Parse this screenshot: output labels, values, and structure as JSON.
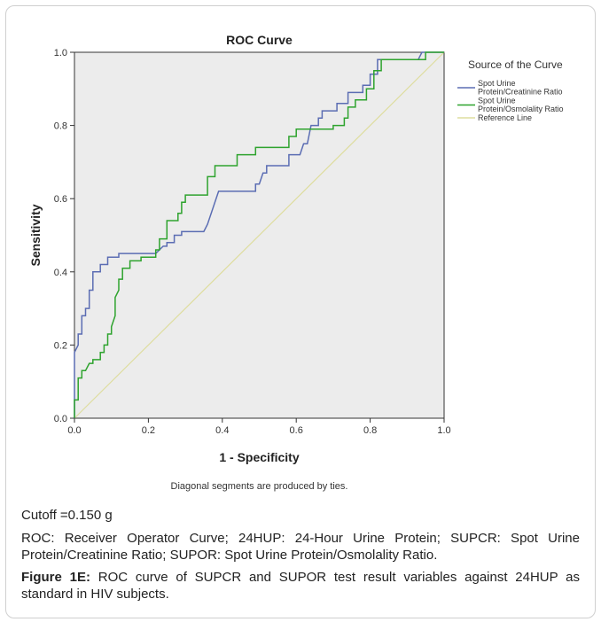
{
  "chart_data": {
    "type": "line",
    "title": "ROC Curve",
    "xlabel": "1 - Specificity",
    "ylabel": "Sensitivity",
    "xlim": [
      0.0,
      1.0
    ],
    "ylim": [
      0.0,
      1.0
    ],
    "x_ticks": [
      "0.0",
      "0.2",
      "0.4",
      "0.6",
      "0.8",
      "1.0"
    ],
    "y_ticks": [
      "0.0",
      "0.2",
      "0.4",
      "0.6",
      "0.8",
      "1.0"
    ],
    "grid": false,
    "legend": {
      "title": "Source of the Curve",
      "position": "right"
    },
    "note": "Diagonal segments are produced by ties.",
    "series": [
      {
        "name": "Spot Urine Protein/Creatinine Ratio",
        "color": "#5b6db3",
        "points": [
          [
            0.0,
            0.0
          ],
          [
            0.0,
            0.18
          ],
          [
            0.01,
            0.2
          ],
          [
            0.01,
            0.23
          ],
          [
            0.02,
            0.23
          ],
          [
            0.02,
            0.28
          ],
          [
            0.03,
            0.28
          ],
          [
            0.03,
            0.3
          ],
          [
            0.04,
            0.3
          ],
          [
            0.04,
            0.35
          ],
          [
            0.05,
            0.35
          ],
          [
            0.05,
            0.4
          ],
          [
            0.07,
            0.4
          ],
          [
            0.07,
            0.42
          ],
          [
            0.09,
            0.42
          ],
          [
            0.09,
            0.44
          ],
          [
            0.12,
            0.44
          ],
          [
            0.12,
            0.45
          ],
          [
            0.22,
            0.45
          ],
          [
            0.24,
            0.47
          ],
          [
            0.25,
            0.47
          ],
          [
            0.25,
            0.48
          ],
          [
            0.27,
            0.48
          ],
          [
            0.27,
            0.5
          ],
          [
            0.29,
            0.5
          ],
          [
            0.29,
            0.51
          ],
          [
            0.35,
            0.51
          ],
          [
            0.36,
            0.53
          ],
          [
            0.39,
            0.62
          ],
          [
            0.49,
            0.62
          ],
          [
            0.49,
            0.64
          ],
          [
            0.5,
            0.64
          ],
          [
            0.51,
            0.67
          ],
          [
            0.52,
            0.67
          ],
          [
            0.52,
            0.69
          ],
          [
            0.58,
            0.69
          ],
          [
            0.58,
            0.72
          ],
          [
            0.61,
            0.72
          ],
          [
            0.62,
            0.75
          ],
          [
            0.63,
            0.75
          ],
          [
            0.64,
            0.8
          ],
          [
            0.66,
            0.8
          ],
          [
            0.66,
            0.82
          ],
          [
            0.67,
            0.82
          ],
          [
            0.67,
            0.84
          ],
          [
            0.71,
            0.84
          ],
          [
            0.71,
            0.86
          ],
          [
            0.74,
            0.86
          ],
          [
            0.74,
            0.89
          ],
          [
            0.78,
            0.89
          ],
          [
            0.78,
            0.91
          ],
          [
            0.8,
            0.91
          ],
          [
            0.8,
            0.94
          ],
          [
            0.82,
            0.94
          ],
          [
            0.82,
            0.98
          ],
          [
            0.93,
            0.98
          ],
          [
            0.94,
            1.0
          ],
          [
            1.0,
            1.0
          ]
        ]
      },
      {
        "name": "Spot Urine Protein/Osmolality Ratio",
        "color": "#2ea32e",
        "points": [
          [
            0.0,
            0.0
          ],
          [
            0.0,
            0.05
          ],
          [
            0.01,
            0.05
          ],
          [
            0.01,
            0.11
          ],
          [
            0.02,
            0.11
          ],
          [
            0.02,
            0.13
          ],
          [
            0.03,
            0.13
          ],
          [
            0.04,
            0.15
          ],
          [
            0.05,
            0.15
          ],
          [
            0.05,
            0.16
          ],
          [
            0.07,
            0.16
          ],
          [
            0.07,
            0.18
          ],
          [
            0.08,
            0.18
          ],
          [
            0.08,
            0.2
          ],
          [
            0.09,
            0.2
          ],
          [
            0.09,
            0.23
          ],
          [
            0.1,
            0.23
          ],
          [
            0.1,
            0.25
          ],
          [
            0.11,
            0.28
          ],
          [
            0.11,
            0.33
          ],
          [
            0.12,
            0.35
          ],
          [
            0.12,
            0.38
          ],
          [
            0.13,
            0.38
          ],
          [
            0.13,
            0.41
          ],
          [
            0.15,
            0.41
          ],
          [
            0.15,
            0.43
          ],
          [
            0.18,
            0.43
          ],
          [
            0.18,
            0.44
          ],
          [
            0.22,
            0.44
          ],
          [
            0.22,
            0.46
          ],
          [
            0.23,
            0.46
          ],
          [
            0.23,
            0.49
          ],
          [
            0.25,
            0.49
          ],
          [
            0.25,
            0.54
          ],
          [
            0.28,
            0.54
          ],
          [
            0.28,
            0.56
          ],
          [
            0.29,
            0.56
          ],
          [
            0.29,
            0.59
          ],
          [
            0.3,
            0.59
          ],
          [
            0.3,
            0.61
          ],
          [
            0.36,
            0.61
          ],
          [
            0.36,
            0.66
          ],
          [
            0.38,
            0.66
          ],
          [
            0.38,
            0.69
          ],
          [
            0.44,
            0.69
          ],
          [
            0.44,
            0.72
          ],
          [
            0.49,
            0.72
          ],
          [
            0.49,
            0.74
          ],
          [
            0.58,
            0.74
          ],
          [
            0.58,
            0.77
          ],
          [
            0.6,
            0.77
          ],
          [
            0.6,
            0.79
          ],
          [
            0.7,
            0.79
          ],
          [
            0.7,
            0.8
          ],
          [
            0.73,
            0.8
          ],
          [
            0.73,
            0.82
          ],
          [
            0.74,
            0.82
          ],
          [
            0.74,
            0.85
          ],
          [
            0.76,
            0.85
          ],
          [
            0.76,
            0.87
          ],
          [
            0.79,
            0.87
          ],
          [
            0.79,
            0.9
          ],
          [
            0.81,
            0.9
          ],
          [
            0.81,
            0.95
          ],
          [
            0.83,
            0.95
          ],
          [
            0.83,
            0.98
          ],
          [
            0.95,
            0.98
          ],
          [
            0.95,
            1.0
          ],
          [
            1.0,
            1.0
          ]
        ]
      },
      {
        "name": "Reference Line",
        "color": "#dedd9f",
        "points": [
          [
            0.0,
            0.0
          ],
          [
            1.0,
            1.0
          ]
        ]
      }
    ]
  },
  "legend_entries": [
    {
      "lines": [
        "Spot Urine",
        "Protein/Creatinine Ratio"
      ],
      "color": "#5b6db3"
    },
    {
      "lines": [
        "Spot Urine",
        "Protein/Osmolality Ratio"
      ],
      "color": "#2ea32e"
    },
    {
      "lines": [
        "Reference Line"
      ],
      "color": "#dedd9f"
    }
  ],
  "cutoff_text": "Cutoff =0.150 g",
  "abbreviations_text": "ROC: Receiver Operator Curve; 24HUP: 24-Hour Urine Protein; SUPCR: Spot Urine Protein/Creatinine Ratio; SUPOR: Spot Urine Protein/Osmolality Ratio.",
  "figure_label": "Figure 1E:",
  "figure_caption": "ROC curve of SUPCR and SUPOR test result variables against 24HUP as standard in HIV subjects.",
  "colors": {
    "plot_background": "#ececec",
    "axis": "#333333"
  }
}
